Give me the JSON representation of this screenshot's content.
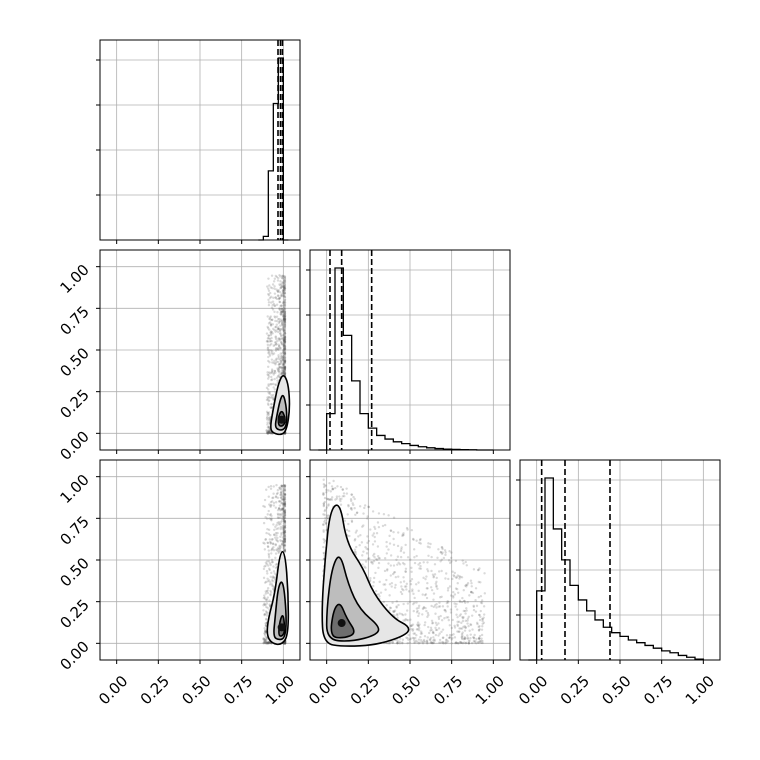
{
  "chart_data": {
    "type": "corner",
    "title": "",
    "grid": true,
    "parameters": [
      "",
      "",
      ""
    ],
    "axis_range": [
      -0.1,
      1.1
    ],
    "tick_labels": [
      "0.00",
      "0.25",
      "0.50",
      "0.75",
      "1.00"
    ],
    "tick_values": [
      0,
      0.25,
      0.5,
      0.75,
      1.0
    ],
    "histograms": [
      {
        "param_index": 0,
        "bin_edges": [
          0.85,
          0.88,
          0.91,
          0.94,
          0.97,
          1.0,
          1.03
        ],
        "counts": [
          0,
          0.02,
          0.38,
          0.75,
          1.0,
          0
        ],
        "quantiles": [
          0.968,
          0.983,
          0.995
        ]
      },
      {
        "param_index": 1,
        "bin_edges": [
          -0.05,
          0.0,
          0.05,
          0.1,
          0.15,
          0.2,
          0.25,
          0.3,
          0.35,
          0.4,
          0.45,
          0.5,
          0.55,
          0.6,
          0.65,
          0.7,
          0.75,
          0.8,
          0.85,
          0.9,
          0.95,
          1.0
        ],
        "counts": [
          0,
          0.2,
          1.0,
          0.63,
          0.38,
          0.2,
          0.12,
          0.08,
          0.06,
          0.045,
          0.035,
          0.025,
          0.018,
          0.012,
          0.008,
          0.005,
          0.003,
          0.002,
          0.001,
          0,
          0
        ],
        "quantiles": [
          0.02,
          0.09,
          0.27
        ]
      },
      {
        "param_index": 2,
        "bin_edges": [
          -0.05,
          0.0,
          0.05,
          0.1,
          0.15,
          0.2,
          0.25,
          0.3,
          0.35,
          0.4,
          0.45,
          0.5,
          0.55,
          0.6,
          0.65,
          0.7,
          0.75,
          0.8,
          0.85,
          0.9,
          0.95,
          1.0
        ],
        "counts": [
          0,
          0.38,
          1.0,
          0.72,
          0.55,
          0.41,
          0.33,
          0.27,
          0.22,
          0.18,
          0.15,
          0.13,
          0.11,
          0.095,
          0.08,
          0.065,
          0.05,
          0.04,
          0.025,
          0.015,
          0.005
        ],
        "quantiles": [
          0.03,
          0.17,
          0.44
        ]
      }
    ],
    "joint_panels": [
      {
        "x_param": 0,
        "y_param": 1,
        "contours": [
          {
            "level": "outer",
            "points": [
              [
                0.92,
                0.03
              ],
              [
                0.94,
                0.0
              ],
              [
                0.99,
                -0.01
              ],
              [
                1.02,
                0.02
              ],
              [
                1.04,
                0.15
              ],
              [
                1.03,
                0.3
              ],
              [
                1.0,
                0.36
              ],
              [
                0.97,
                0.3
              ],
              [
                0.94,
                0.15
              ]
            ]
          },
          {
            "level": "middle",
            "points": [
              [
                0.95,
                0.04
              ],
              [
                0.97,
                0.02
              ],
              [
                1.0,
                0.02
              ],
              [
                1.02,
                0.05
              ],
              [
                1.02,
                0.15
              ],
              [
                1.0,
                0.24
              ],
              [
                0.98,
                0.2
              ],
              [
                0.96,
                0.1
              ]
            ]
          },
          {
            "level": "inner",
            "points": [
              [
                0.97,
                0.05
              ],
              [
                0.99,
                0.04
              ],
              [
                1.01,
                0.06
              ],
              [
                1.01,
                0.1
              ],
              [
                0.99,
                0.14
              ],
              [
                0.97,
                0.1
              ]
            ]
          }
        ],
        "scatter_region": {
          "x_min": 0.9,
          "x_max": 1.01,
          "y_min": 0.0,
          "y_max": 0.95
        }
      },
      {
        "x_param": 0,
        "y_param": 2,
        "contours": [
          {
            "level": "outer",
            "points": [
              [
                0.9,
                0.05
              ],
              [
                0.93,
                0.0
              ],
              [
                0.99,
                -0.01
              ],
              [
                1.03,
                0.05
              ],
              [
                1.03,
                0.3
              ],
              [
                1.01,
                0.55
              ],
              [
                0.98,
                0.55
              ],
              [
                0.95,
                0.3
              ],
              [
                0.91,
                0.15
              ]
            ]
          },
          {
            "level": "middle",
            "points": [
              [
                0.94,
                0.04
              ],
              [
                0.97,
                0.02
              ],
              [
                1.01,
                0.03
              ],
              [
                1.02,
                0.15
              ],
              [
                1.0,
                0.38
              ],
              [
                0.97,
                0.35
              ],
              [
                0.95,
                0.15
              ]
            ]
          },
          {
            "level": "inner",
            "points": [
              [
                0.97,
                0.05
              ],
              [
                0.99,
                0.04
              ],
              [
                1.01,
                0.07
              ],
              [
                1.0,
                0.18
              ],
              [
                0.98,
                0.14
              ]
            ]
          }
        ],
        "scatter_region": {
          "x_min": 0.88,
          "x_max": 1.01,
          "y_min": 0.0,
          "y_max": 0.95
        }
      },
      {
        "x_param": 1,
        "y_param": 2,
        "contours": [
          {
            "level": "outer",
            "points": [
              [
                -0.02,
                0.0
              ],
              [
                0.1,
                -0.02
              ],
              [
                0.3,
                -0.01
              ],
              [
                0.48,
                0.05
              ],
              [
                0.5,
                0.1
              ],
              [
                0.4,
                0.15
              ],
              [
                0.28,
                0.3
              ],
              [
                0.22,
                0.45
              ],
              [
                0.12,
                0.6
              ],
              [
                0.08,
                0.85
              ],
              [
                0.02,
                0.8
              ],
              [
                -0.01,
                0.5
              ],
              [
                -0.03,
                0.2
              ]
            ]
          },
          {
            "level": "middle",
            "points": [
              [
                0.0,
                0.02
              ],
              [
                0.15,
                0.01
              ],
              [
                0.3,
                0.05
              ],
              [
                0.32,
                0.1
              ],
              [
                0.2,
                0.2
              ],
              [
                0.13,
                0.35
              ],
              [
                0.08,
                0.55
              ],
              [
                0.03,
                0.45
              ],
              [
                0.0,
                0.2
              ]
            ]
          },
          {
            "level": "inner",
            "points": [
              [
                0.02,
                0.04
              ],
              [
                0.1,
                0.03
              ],
              [
                0.18,
                0.06
              ],
              [
                0.12,
                0.15
              ],
              [
                0.08,
                0.25
              ],
              [
                0.04,
                0.2
              ]
            ]
          }
        ],
        "scatter_region": {
          "x_min": -0.02,
          "x_max": 0.95,
          "y_min": 0.0,
          "y_max": 1.0
        }
      }
    ],
    "colors": {
      "line": "#000000",
      "grid": "#b0b0b0",
      "scatter": "#555555"
    }
  }
}
